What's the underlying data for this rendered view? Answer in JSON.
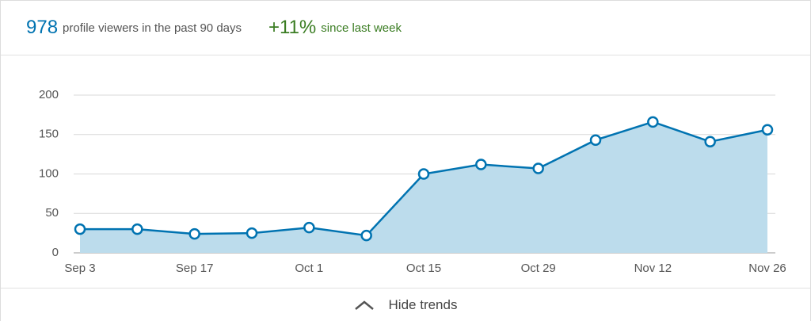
{
  "header": {
    "count": "978",
    "count_text": "profile viewers in the past 90 days",
    "change": "+11%",
    "change_text": "since last week"
  },
  "chart_data": {
    "type": "area",
    "categories": [
      "Sep 3",
      null,
      "Sep 17",
      null,
      "Oct 1",
      null,
      "Oct 15",
      null,
      "Oct 29",
      null,
      "Nov 12",
      null,
      "Nov 26"
    ],
    "values": [
      30,
      30,
      24,
      25,
      32,
      22,
      100,
      112,
      107,
      143,
      166,
      141,
      156
    ],
    "color": "#0073b1",
    "fill": "#bcdcec",
    "ylim": [
      0,
      200
    ],
    "yticks": [
      0,
      50,
      100,
      150,
      200
    ],
    "grid": true
  },
  "footer": {
    "toggle": "Hide trends"
  }
}
